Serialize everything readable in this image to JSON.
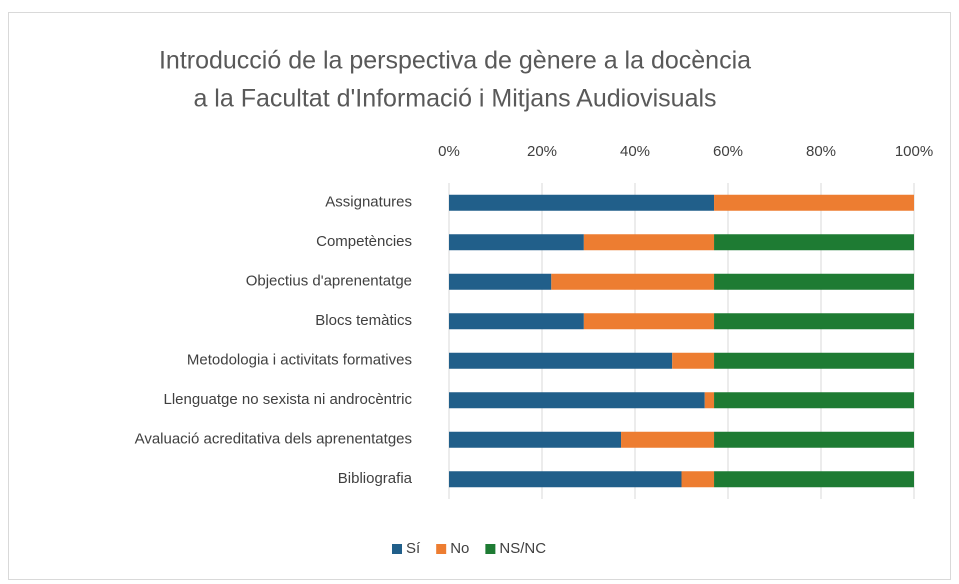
{
  "chart_data": {
    "type": "stacked_bar_horizontal",
    "title": [
      "Introducció de la perspectiva de gènere a la docència",
      "a la Facultat d'Informació i Mitjans Audiovisuals"
    ],
    "categories": [
      "Assignatures",
      "Competències",
      "Objectius d'aprenentatge",
      "Blocs temàtics",
      "Metodologia i activitats formatives",
      "Llenguatge no sexista ni androcèntric",
      "Avaluació acreditativa dels aprenentatges",
      "Bibliografia"
    ],
    "series": [
      {
        "name": "Sí",
        "color": "#215f8a",
        "values": [
          57,
          29,
          22,
          29,
          48,
          55,
          37,
          50
        ]
      },
      {
        "name": "No",
        "color": "#ed7d31",
        "values": [
          43,
          28,
          35,
          28,
          9,
          2,
          20,
          7
        ]
      },
      {
        "name": "NS/NC",
        "color": "#1e7b33",
        "values": [
          0,
          43,
          43,
          43,
          43,
          43,
          43,
          43
        ]
      }
    ],
    "xlim": [
      0,
      100
    ],
    "xticks": [
      {
        "value": 0,
        "label": "0%"
      },
      {
        "value": 20,
        "label": "20%"
      },
      {
        "value": 40,
        "label": "40%"
      },
      {
        "value": 60,
        "label": "60%"
      },
      {
        "value": 80,
        "label": "80%"
      },
      {
        "value": 100,
        "label": "100%"
      }
    ],
    "grid": true,
    "legend": "bottom"
  }
}
